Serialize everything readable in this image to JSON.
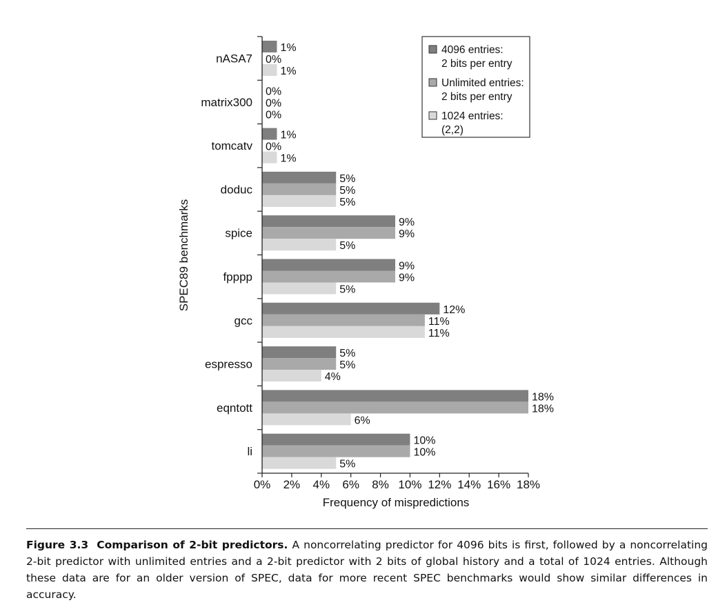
{
  "chart_data": {
    "type": "bar",
    "orientation": "horizontal",
    "categories": [
      "nASA7",
      "matrix300",
      "tomcatv",
      "doduc",
      "spice",
      "fpppp",
      "gcc",
      "espresso",
      "eqntott",
      "li"
    ],
    "series": [
      {
        "name": "4096 entries:\n2 bits per entry",
        "color": "#7f7f7f",
        "values": [
          1,
          0,
          1,
          5,
          9,
          9,
          12,
          5,
          18,
          10
        ]
      },
      {
        "name": "Unlimited entries:\n2 bits per entry",
        "color": "#a9a9a9",
        "values": [
          0,
          0,
          0,
          5,
          9,
          9,
          11,
          5,
          18,
          10
        ]
      },
      {
        "name": "1024 entries:\n(2,2)",
        "color": "#d9d9d9",
        "values": [
          1,
          0,
          1,
          5,
          5,
          5,
          11,
          4,
          6,
          5
        ]
      }
    ],
    "value_labels": [
      [
        "1%",
        "0%",
        "1%",
        "5%",
        "9%",
        "9%",
        "12%",
        "5%",
        "18%",
        "10%"
      ],
      [
        "0%",
        "0%",
        "0%",
        "5%",
        "9%",
        "9%",
        "11%",
        "5%",
        "18%",
        "10%"
      ],
      [
        "1%",
        "0%",
        "1%",
        "5%",
        "5%",
        "5%",
        "11%",
        "4%",
        "6%",
        "5%"
      ]
    ],
    "xlabel": "Frequency of mispredictions",
    "ylabel": "SPEC89 benchmarks",
    "xlim": [
      0,
      18
    ],
    "xticks": [
      "0%",
      "2%",
      "4%",
      "6%",
      "8%",
      "10%",
      "12%",
      "14%",
      "16%",
      "18%"
    ],
    "grid": false,
    "legend_position": "top-right"
  },
  "caption": {
    "label": "Figure 3.3",
    "title": "Comparison of 2-bit predictors.",
    "text": "A noncorrelating predictor for 4096 bits is first, followed by a noncorrelating 2-bit predictor with unlimited entries and a 2-bit predictor with 2 bits of global history and a total of 1024 entries. Although these data are for an older version of SPEC, data for more recent SPEC benchmarks would show similar differences in accuracy."
  }
}
